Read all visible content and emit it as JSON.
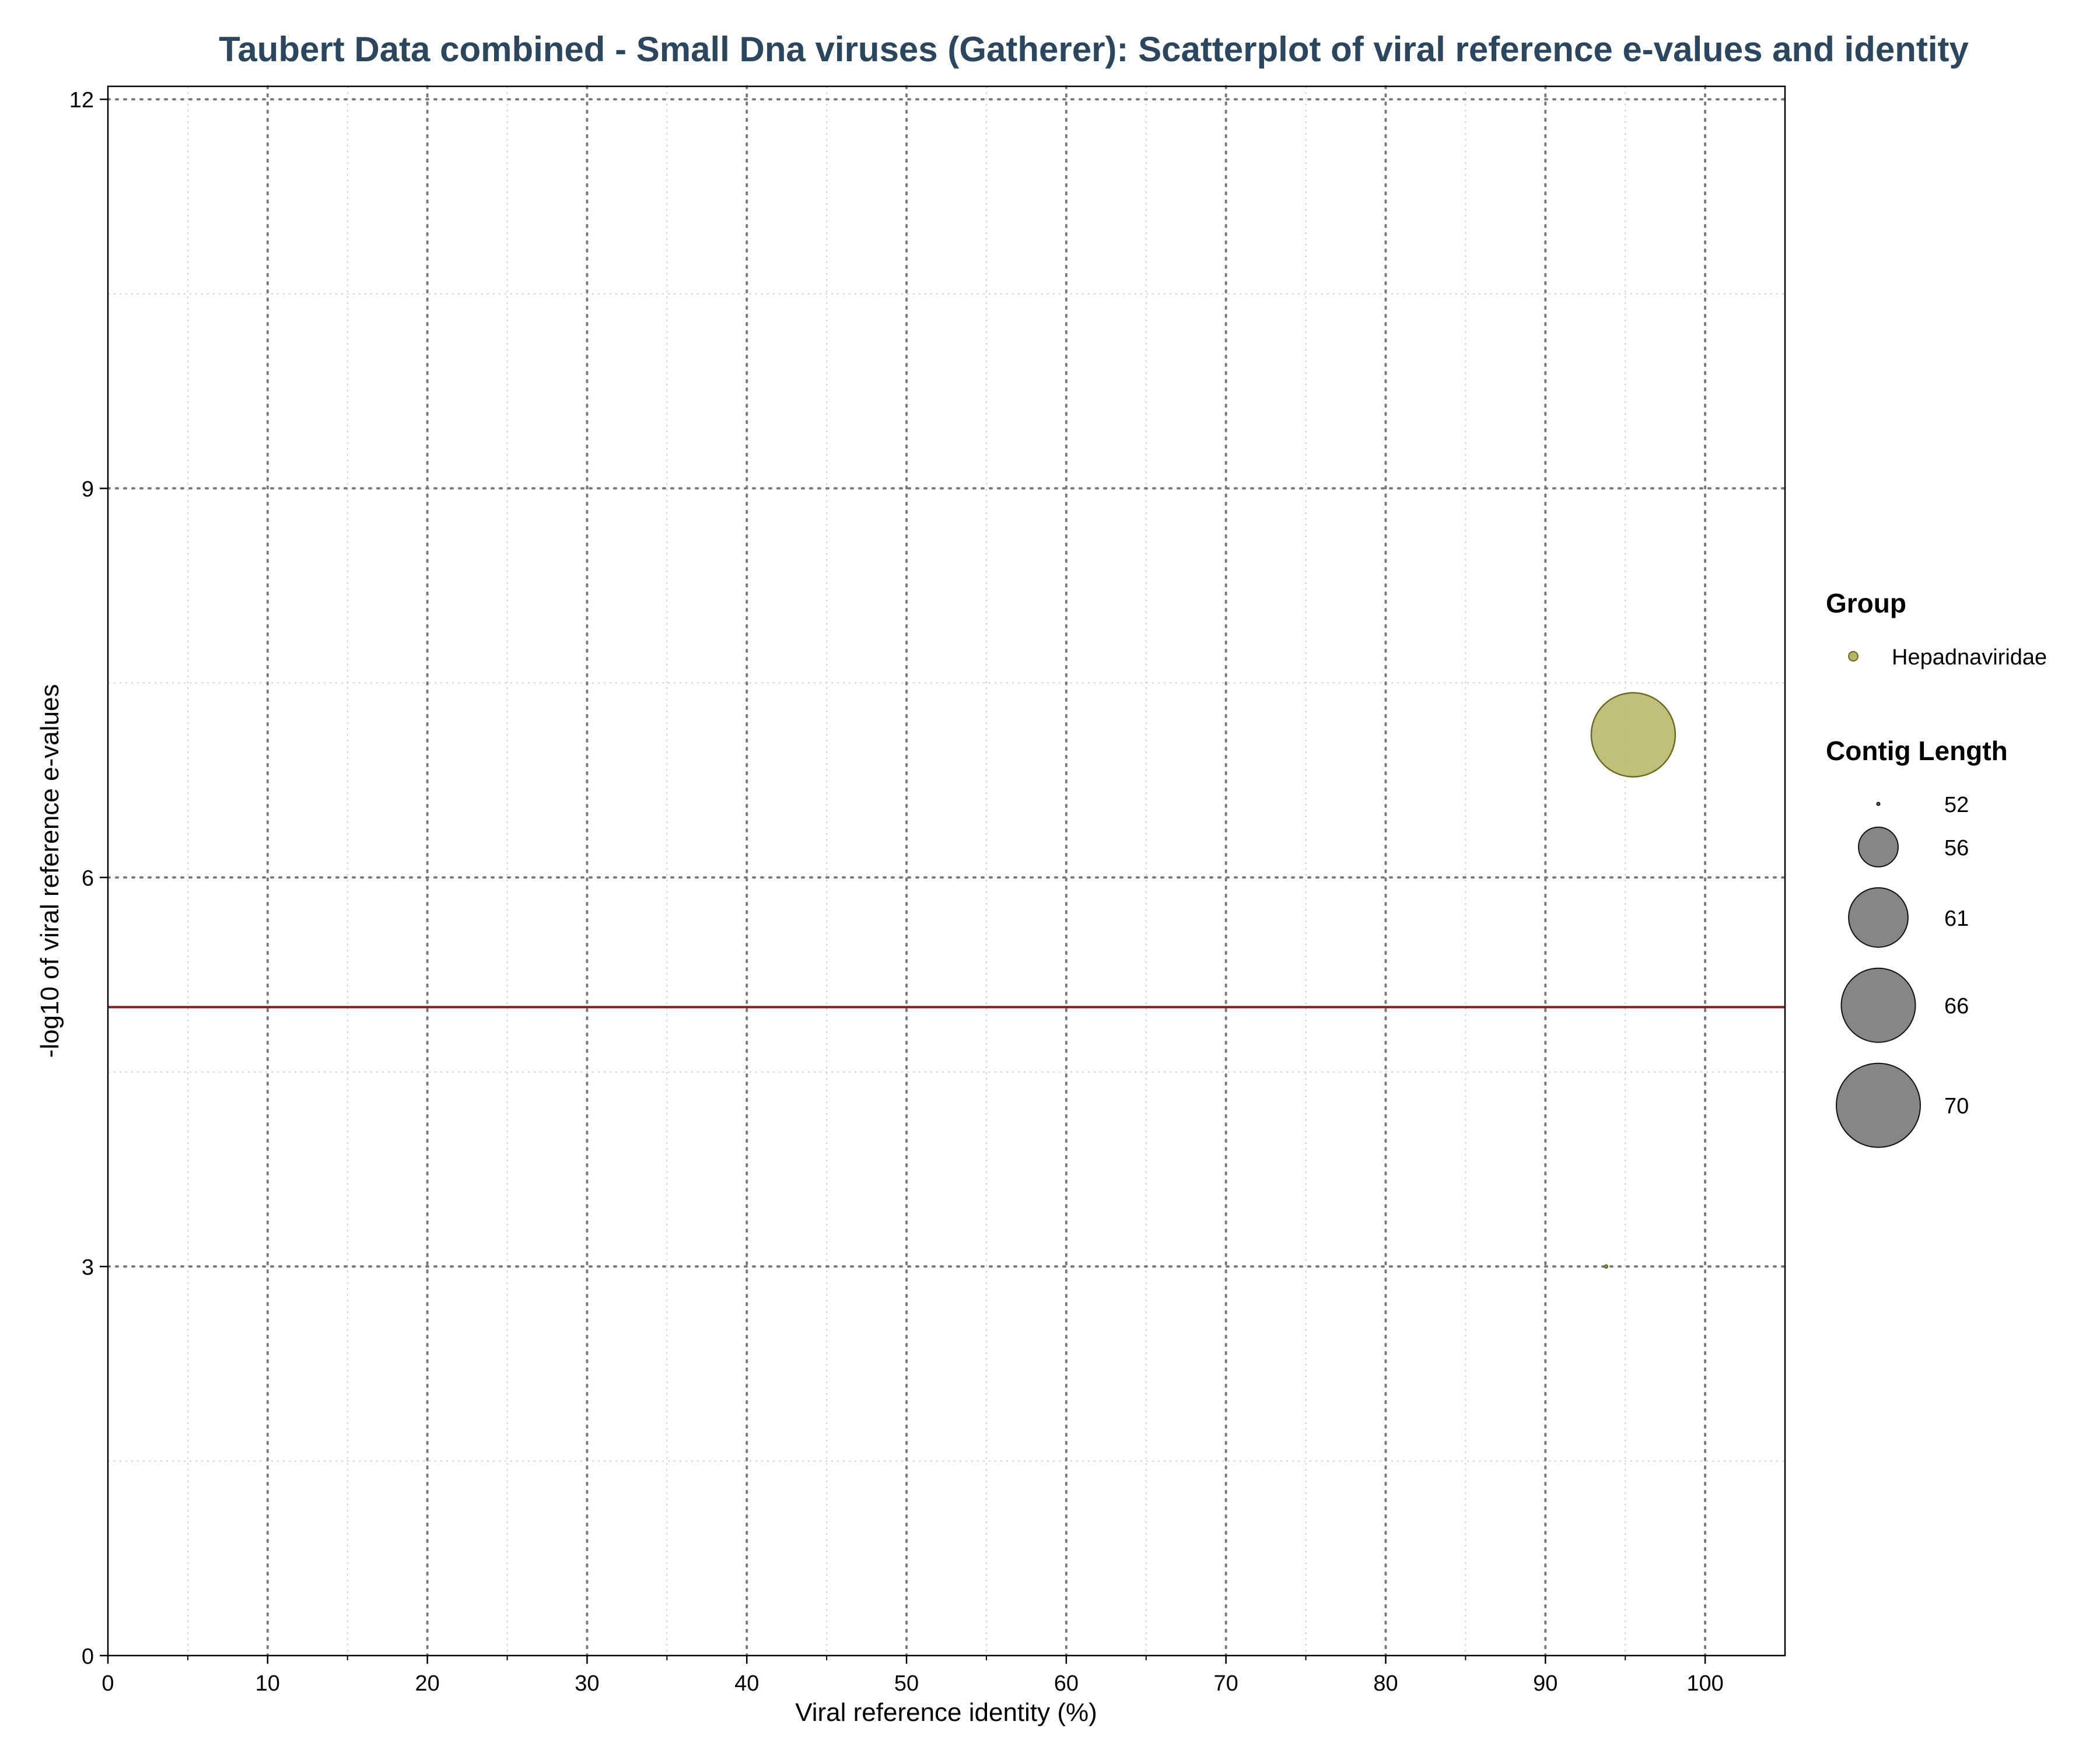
{
  "chart_data": {
    "type": "scatter",
    "title": "Taubert Data combined - Small Dna viruses (Gatherer): Scatterplot of viral reference e-values and identity",
    "xlabel": "Viral reference identity (%)",
    "ylabel": "-log10 of viral reference e-values",
    "xlim": [
      0,
      105
    ],
    "ylim": [
      0,
      12.1
    ],
    "x_ticks": [
      0,
      10,
      20,
      30,
      40,
      50,
      60,
      70,
      80,
      90,
      100
    ],
    "y_ticks": [
      0,
      3,
      6,
      9,
      12
    ],
    "x_tick_labels": [
      "0",
      "10",
      "20",
      "30",
      "40",
      "50",
      "60",
      "70",
      "80",
      "90",
      "100"
    ],
    "y_tick_labels": [
      "0",
      "3",
      "6",
      "9",
      "12"
    ],
    "minor_grid": true,
    "grid": true,
    "threshold_line": {
      "y": 5,
      "color": "#8b1a1a"
    },
    "series": [
      {
        "name": "Hepadnaviridae",
        "color": "#b5b565",
        "edge_color": "#6b6b20",
        "points": [
          {
            "x": 95.5,
            "y": 7.1,
            "contig_length": 70
          },
          {
            "x": 93.8,
            "y": 3.0,
            "contig_length": 52
          }
        ]
      }
    ],
    "legend": {
      "placement": "right",
      "group_title": "Group",
      "size_title": "Contig Length",
      "size_entries": [
        52,
        56,
        61,
        66,
        70
      ],
      "size_labels": [
        "52",
        "56",
        "61",
        "66",
        "70"
      ]
    }
  }
}
